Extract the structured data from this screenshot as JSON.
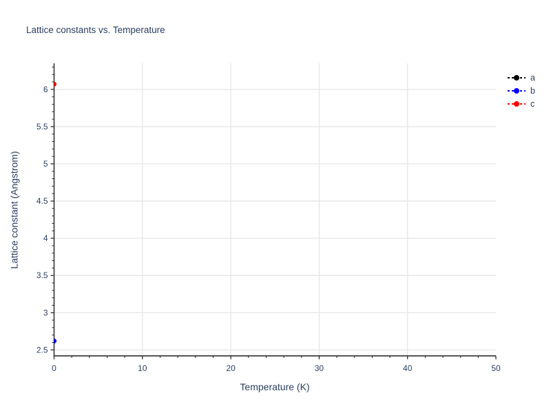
{
  "title": "Lattice constants vs. Temperature",
  "chart_data": {
    "type": "scatter",
    "title": "Lattice constants vs. Temperature",
    "xlabel": "Temperature (K)",
    "ylabel": "Lattice constant (Angstrom)",
    "xlim": [
      0,
      50
    ],
    "ylim": [
      2.42,
      6.35
    ],
    "grid": true,
    "legend_position": "top-right-outside",
    "line_style": "dotted",
    "marker": "circle",
    "x_major_ticks": [
      0,
      10,
      20,
      30,
      40,
      50
    ],
    "x_minor_step": 2,
    "y_major_ticks": [
      2.5,
      3,
      3.5,
      4,
      4.5,
      5,
      5.5,
      6
    ],
    "y_minor_step": 0.1,
    "x_gridline_values": [
      10,
      20,
      30,
      40
    ],
    "y_gridline_values": [
      2.5,
      3,
      3.5,
      4,
      4.5,
      5,
      5.5,
      6
    ],
    "x": [
      0
    ],
    "series": [
      {
        "name": "a",
        "color": "#000000",
        "values": [
          2.62
        ]
      },
      {
        "name": "b",
        "color": "#0000ff",
        "values": [
          2.62
        ]
      },
      {
        "name": "c",
        "color": "#ff0000",
        "values": [
          6.07
        ]
      }
    ]
  },
  "legend": {
    "items": [
      {
        "label": "a",
        "color": "#000000"
      },
      {
        "label": "b",
        "color": "#0000ff"
      },
      {
        "label": "c",
        "color": "#ff0000"
      }
    ]
  },
  "colors": {
    "background": "#ffffff",
    "text": "#2a3f5f",
    "axis_line": "#1f1f1f",
    "grid_line": "#e5e5e5",
    "series_a": "#000000",
    "series_b": "#0000ff",
    "series_c": "#ff0000"
  }
}
